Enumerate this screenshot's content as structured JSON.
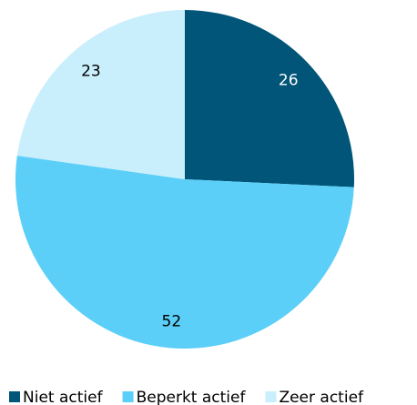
{
  "chart_data": {
    "type": "pie",
    "categories": [
      "Niet actief",
      "Beperkt actief",
      "Zeer actief"
    ],
    "values": [
      26,
      52,
      23
    ],
    "colors": [
      "#005578",
      "#5bcff7",
      "#c9eefc"
    ]
  }
}
